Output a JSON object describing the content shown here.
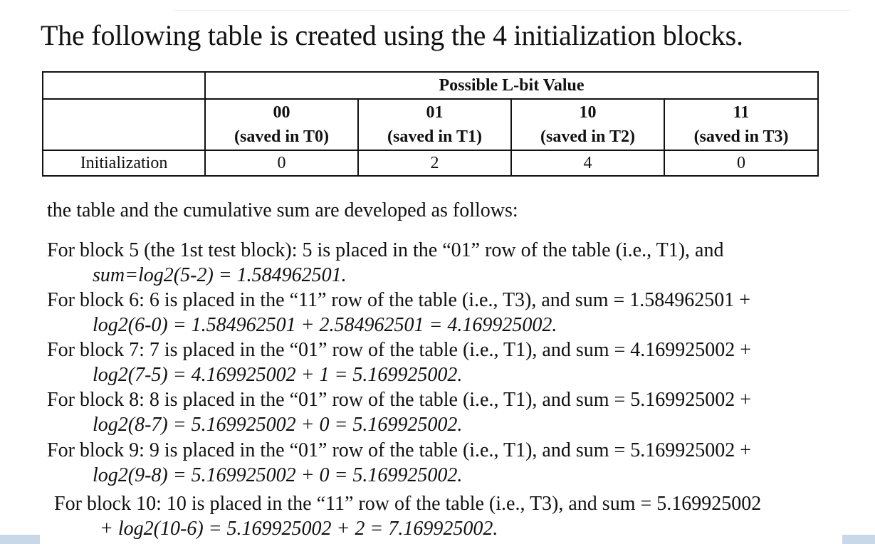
{
  "title": "The following table is created using the 4 initialization blocks.",
  "table": {
    "group_header": "Possible L-bit Value",
    "columns": [
      {
        "bits": "00",
        "saved": "(saved in T0)"
      },
      {
        "bits": "01",
        "saved": "(saved in T1)"
      },
      {
        "bits": "10",
        "saved": "(saved in T2)"
      },
      {
        "bits": "11",
        "saved": "(saved in T3)"
      }
    ],
    "row_label": "Initialization",
    "row_values": [
      "0",
      "2",
      "4",
      "0"
    ]
  },
  "intro": "the table and the cumulative sum are developed as follows:",
  "blocks": [
    {
      "line1": "For block 5 (the 1st test block): 5 is placed in the “01” row of the table (i.e., T1), and",
      "line2": "sum=log2(5-2) = 1.584962501."
    },
    {
      "line1": "For block 6: 6 is placed in the “11” row of the table (i.e., T3), and sum = 1.584962501 +",
      "line2": "log2(6-0) = 1.584962501 + 2.584962501 = 4.169925002."
    },
    {
      "line1": "For block 7: 7 is placed in the “01” row of the table (i.e., T1), and sum = 4.169925002 +",
      "line2": "log2(7-5) = 4.169925002 + 1 = 5.169925002."
    },
    {
      "line1": "For block 8: 8 is placed in the “01” row of the table (i.e., T1), and sum = 5.169925002 +",
      "line2": "log2(8-7) = 5.169925002 + 0 = 5.169925002."
    },
    {
      "line1": "For block 9: 9 is placed in the “01” row of the table (i.e., T1), and sum = 5.169925002 +",
      "line2": "log2(9-8) = 5.169925002 + 0 = 5.169925002."
    },
    {
      "line1": "For block 10: 10 is placed in the “11” row of the table (i.e., T3), and sum = 5.169925002",
      "line2": "+ log2(10-6) = 5.169925002 + 2 = 7.169925002."
    }
  ]
}
